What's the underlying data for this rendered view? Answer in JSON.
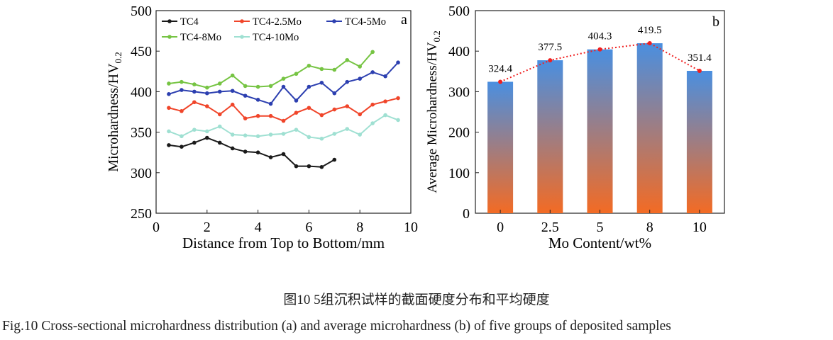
{
  "chart_data": [
    {
      "type": "line",
      "panel_label": "a",
      "xlabel": "Distance from Top to Bottom/mm",
      "ylabel": "Microhardness/HV",
      "ylabel_sub": "0.2",
      "xlim": [
        0,
        10
      ],
      "ylim": [
        250,
        500
      ],
      "xticks": [
        "0",
        "2",
        "4",
        "6",
        "8",
        "10"
      ],
      "yticks": [
        "250",
        "300",
        "350",
        "400",
        "450",
        "500"
      ],
      "legend_position": "top-left",
      "series": [
        {
          "name": "TC4",
          "color": "#1a1a1a",
          "x_start": 0.5,
          "x_step": 0.5,
          "values": [
            334,
            332,
            337,
            343,
            337,
            330,
            326,
            325,
            319,
            323,
            308,
            308,
            307,
            316
          ]
        },
        {
          "name": "TC4-2.5Mo",
          "color": "#f0452a",
          "x_start": 0.5,
          "x_step": 0.5,
          "values": [
            380,
            376,
            387,
            382,
            372,
            384,
            367,
            370,
            370,
            364,
            374,
            380,
            371,
            378,
            382,
            372,
            384,
            388,
            392
          ]
        },
        {
          "name": "TC4-5Mo",
          "color": "#2c3fb0",
          "x_start": 0.5,
          "x_step": 0.5,
          "values": [
            397,
            402,
            400,
            398,
            400,
            401,
            395,
            390,
            385,
            406,
            389,
            406,
            411,
            398,
            412,
            416,
            424,
            419,
            436
          ]
        },
        {
          "name": "TC4-8Mo",
          "color": "#76c443",
          "x_start": 0.5,
          "x_step": 0.5,
          "values": [
            410,
            412,
            409,
            405,
            410,
            420,
            407,
            406,
            407,
            416,
            422,
            432,
            428,
            427,
            439,
            431,
            449
          ]
        },
        {
          "name": "TC4-10Mo",
          "color": "#9fe0d2",
          "x_start": 0.5,
          "x_step": 0.5,
          "values": [
            351,
            345,
            353,
            351,
            357,
            347,
            346,
            345,
            347,
            348,
            353,
            344,
            342,
            348,
            354,
            347,
            361,
            371,
            365
          ]
        }
      ]
    },
    {
      "type": "bar",
      "panel_label": "b",
      "xlabel": "Mo Content/wt%",
      "ylabel": "Average Microhardness/HV",
      "ylabel_sub": "0.2",
      "ylim": [
        0,
        500
      ],
      "yticks": [
        "0",
        "100",
        "200",
        "300",
        "400",
        "500"
      ],
      "categories": [
        "0",
        "2.5",
        "5",
        "8",
        "10"
      ],
      "values": [
        324.4,
        377.5,
        404.3,
        419.5,
        351.4
      ],
      "data_labels": [
        "324.4",
        "377.5",
        "404.3",
        "419.5",
        "351.4"
      ],
      "bar_gradient": [
        "#4a8fe0",
        "#f36b24"
      ],
      "trend_color": "#f02020"
    }
  ],
  "caption_cn": "图10  5组沉积试样的截面硬度分布和平均硬度",
  "caption_en": "Fig.10  Cross-sectional microhardness distribution (a) and average microhardness (b) of five groups of deposited samples"
}
